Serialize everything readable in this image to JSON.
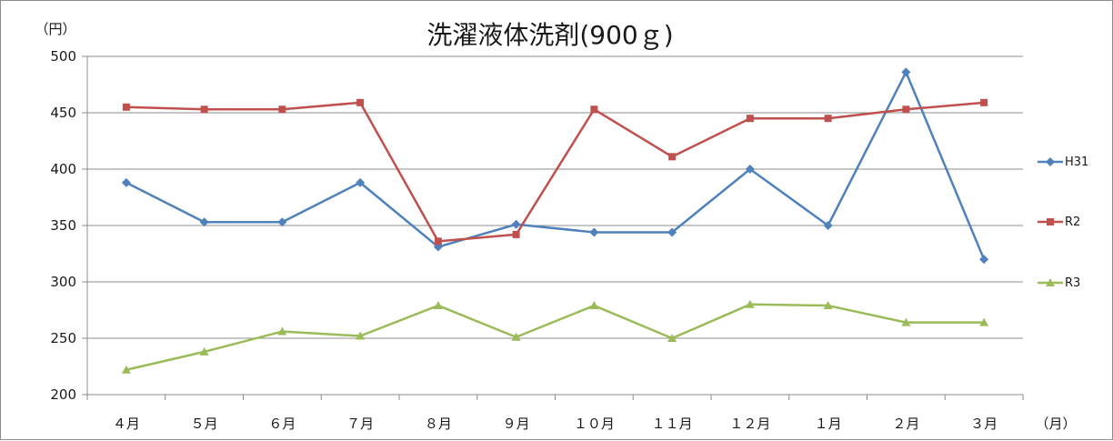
{
  "chart_data": {
    "type": "line",
    "title": "洗濯液体洗剤(900ｇ)",
    "y_unit": "（円）",
    "x_unit": "（月）",
    "categories": [
      "４月",
      "５月",
      "６月",
      "７月",
      "８月",
      "９月",
      "１０月",
      "１１月",
      "１２月",
      "１月",
      "２月",
      "３月"
    ],
    "ylim": [
      200,
      500
    ],
    "y_ticks": [
      200,
      250,
      300,
      350,
      400,
      450,
      500
    ],
    "grid": true,
    "legend_position": "right",
    "series": [
      {
        "name": "H31",
        "color": "#4f81bd",
        "marker": "diamond",
        "values": [
          388,
          353,
          353,
          388,
          331,
          351,
          344,
          344,
          400,
          350,
          486,
          320
        ]
      },
      {
        "name": "R2",
        "color": "#c0504d",
        "marker": "square",
        "values": [
          455,
          453,
          453,
          459,
          336,
          342,
          453,
          411,
          445,
          445,
          453,
          459
        ]
      },
      {
        "name": "R3",
        "color": "#9bbb59",
        "marker": "triangle",
        "values": [
          222,
          238,
          256,
          252,
          279,
          251,
          279,
          250,
          280,
          279,
          264,
          264
        ]
      }
    ]
  }
}
